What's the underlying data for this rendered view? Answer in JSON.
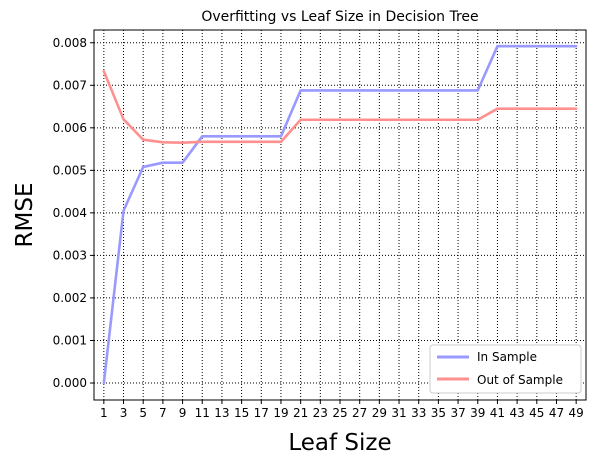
{
  "chart_data": {
    "type": "line",
    "title": "Overfitting vs Leaf Size in Decision Tree",
    "xlabel": "Leaf Size",
    "ylabel": "RMSE",
    "x": [
      1,
      3,
      5,
      7,
      9,
      11,
      13,
      15,
      17,
      19,
      21,
      23,
      25,
      27,
      29,
      31,
      33,
      35,
      37,
      39,
      41,
      43,
      45,
      47,
      49
    ],
    "xlim": [
      0,
      50
    ],
    "ylim": [
      -0.0004,
      0.0083
    ],
    "yticks": [
      0.0,
      0.001,
      0.002,
      0.003,
      0.004,
      0.005,
      0.006,
      0.007,
      0.008
    ],
    "ytick_labels": [
      "0.000",
      "0.001",
      "0.002",
      "0.003",
      "0.004",
      "0.005",
      "0.006",
      "0.007",
      "0.008"
    ],
    "grid": "dotted",
    "legend_position": "lower-right",
    "series": [
      {
        "name": "In Sample",
        "color": "#9999ff",
        "values": [
          0.0,
          0.00405,
          0.00508,
          0.00518,
          0.00518,
          0.0058,
          0.0058,
          0.0058,
          0.0058,
          0.0058,
          0.00688,
          0.00688,
          0.00688,
          0.00688,
          0.00688,
          0.00688,
          0.00688,
          0.00688,
          0.00688,
          0.00688,
          0.00792,
          0.00792,
          0.00792,
          0.00792,
          0.00792
        ]
      },
      {
        "name": "Out of Sample",
        "color": "#ff9090",
        "values": [
          0.00733,
          0.0062,
          0.00572,
          0.00566,
          0.00565,
          0.00567,
          0.00567,
          0.00567,
          0.00567,
          0.00567,
          0.00619,
          0.00619,
          0.00619,
          0.00619,
          0.00619,
          0.00619,
          0.00619,
          0.00619,
          0.00619,
          0.00619,
          0.00645,
          0.00645,
          0.00645,
          0.00645,
          0.00645
        ]
      }
    ]
  }
}
